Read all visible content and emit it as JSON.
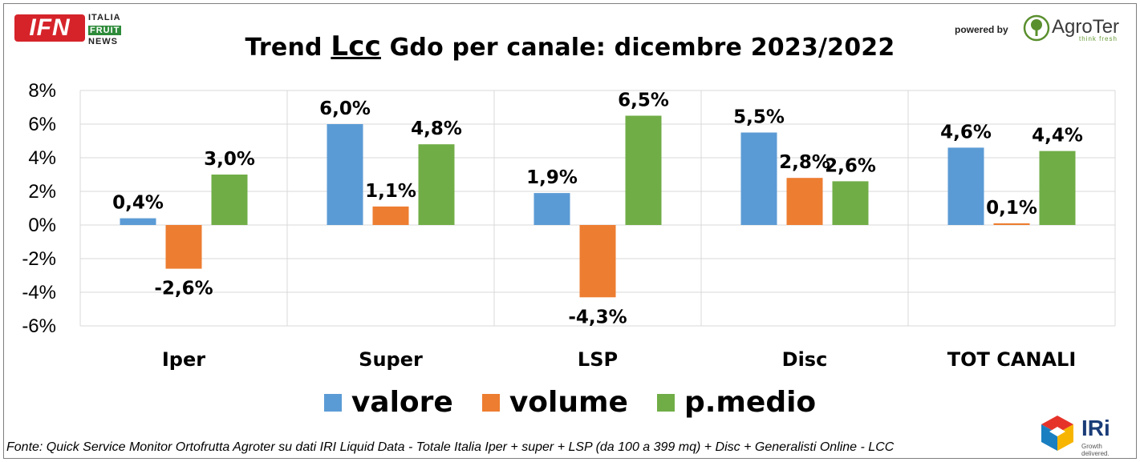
{
  "header": {
    "logo_left_letters": "IFN",
    "logo_left_line1": "ITALIA",
    "logo_left_line2": "FRUIT",
    "logo_left_line3": "NEWS",
    "powered_by": "powered by",
    "logo_right_name": "AgroTer",
    "logo_right_tag": "think fresh"
  },
  "chart_data": {
    "type": "bar",
    "title_prefix": "Trend ",
    "title_emphasis": "Lcc",
    "title_suffix": " Gdo per canale: dicembre 2023/2022",
    "categories": [
      "Iper",
      "Super",
      "LSP",
      "Disc",
      "TOT CANALI"
    ],
    "series": [
      {
        "name": "valore",
        "color": "#5b9bd5",
        "values": [
          0.4,
          6.0,
          1.9,
          5.5,
          4.6
        ],
        "labels": [
          "0,4%",
          "6,0%",
          "1,9%",
          "5,5%",
          "4,6%"
        ]
      },
      {
        "name": "volume",
        "color": "#ed7d31",
        "values": [
          -2.6,
          1.1,
          -4.3,
          2.8,
          0.1
        ],
        "labels": [
          "-2,6%",
          "1,1%",
          "-4,3%",
          "2,8%",
          "0,1%"
        ]
      },
      {
        "name": "p.medio",
        "color": "#70ad47",
        "values": [
          3.0,
          4.8,
          6.5,
          2.6,
          4.4
        ],
        "labels": [
          "3,0%",
          "4,8%",
          "6,5%",
          "2,6%",
          "4,4%"
        ]
      }
    ],
    "y_ticks": [
      "8%",
      "6%",
      "4%",
      "2%",
      "0%",
      "-2%",
      "-4%",
      "-6%"
    ],
    "ylim": [
      -6,
      8
    ],
    "grid": true,
    "legend_position": "bottom"
  },
  "footer": {
    "source": "Fonte: Quick Service Monitor Ortofrutta Agroter su dati IRI Liquid Data - Totale Italia Iper + super + LSP (da 100 a 399 mq) + Disc + Generalisti Online - LCC",
    "logo_iri": "IRi",
    "logo_iri_tag": "Growth delivered."
  }
}
